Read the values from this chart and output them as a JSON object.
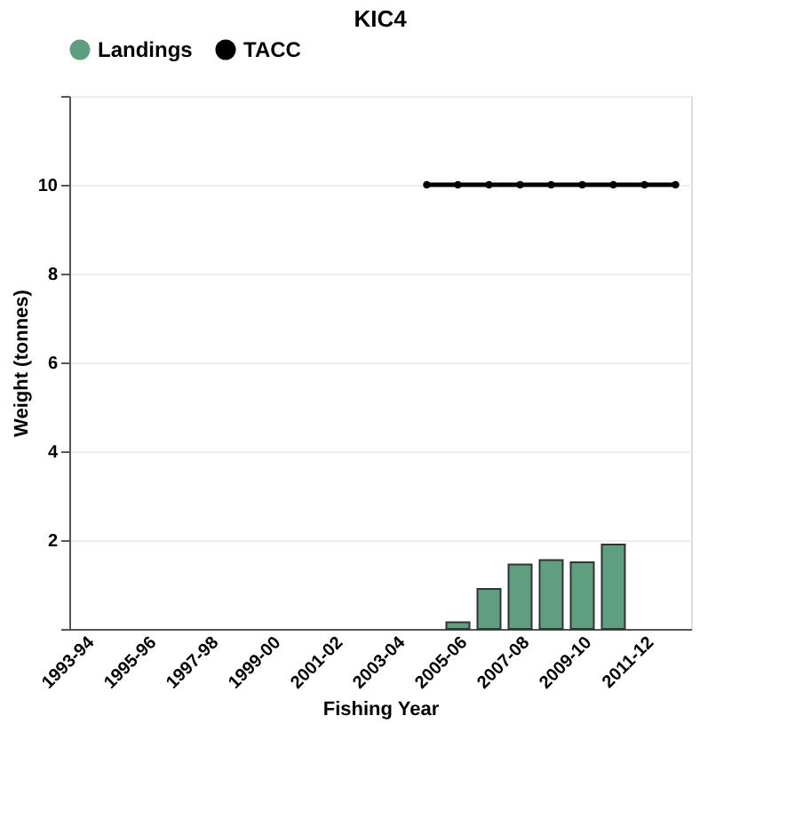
{
  "chart_data": {
    "type": "bar",
    "title": "KIC4",
    "xlabel": "Fishing Year",
    "ylabel": "Weight (tonnes)",
    "categories": [
      "1993-94",
      null,
      "1995-96",
      null,
      "1997-98",
      null,
      "1999-00",
      null,
      "2001-02",
      null,
      "2003-04",
      null,
      "2005-06",
      null,
      "2007-08",
      null,
      "2009-10",
      null,
      "2011-12",
      null
    ],
    "series": [
      {
        "name": "Landings",
        "color": "#5f9e7f",
        "values": [
          null,
          null,
          null,
          null,
          null,
          null,
          null,
          null,
          null,
          null,
          null,
          null,
          0.15,
          0.9,
          1.45,
          1.55,
          1.5,
          1.9,
          null,
          null
        ]
      },
      {
        "name": "TACC",
        "type": "line",
        "color": "#000000",
        "marker": "circle",
        "values": [
          null,
          null,
          null,
          null,
          null,
          null,
          null,
          null,
          null,
          null,
          null,
          10,
          10,
          10,
          10,
          10,
          10,
          10,
          10,
          10
        ]
      }
    ],
    "ylim": [
      0,
      12
    ],
    "yticks": [
      {
        "value": 0,
        "label": null
      },
      2,
      4,
      6,
      8,
      10,
      {
        "value": 12,
        "label": null
      }
    ],
    "grid": "y",
    "legend": "top"
  }
}
